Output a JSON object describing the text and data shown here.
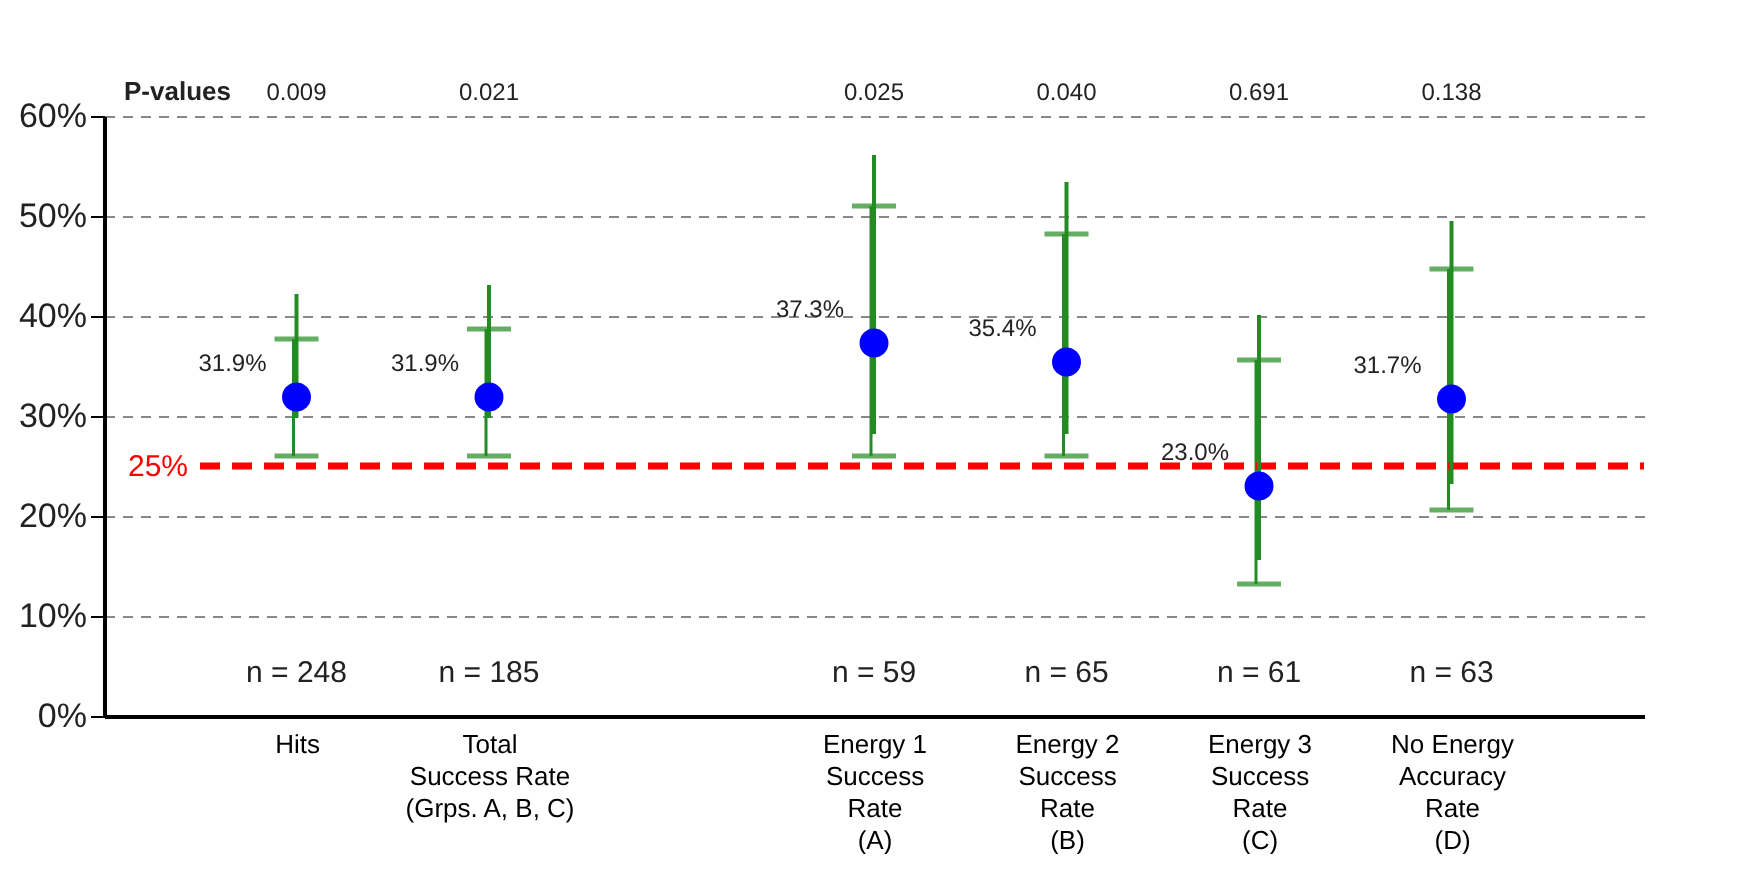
{
  "chart_data": {
    "type": "scatter",
    "categories": [
      "Hits",
      "Total\nSuccess Rate\n(Grps. A, B, C)",
      null,
      "Energy 1\nSuccess\nRate\n(A)",
      "Energy 2\nSuccess\nRate\n(B)",
      "Energy 3\nSuccess\nRate\n(C)",
      "No Energy\nAccuracy\nRate\n(D)"
    ],
    "series": [
      {
        "type": "bar",
        "color": "#228b22",
        "base": [
          29.8,
          29.8,
          null,
          28.2,
          28.2,
          15.6,
          23.2
        ],
        "values": [
          12.4,
          13.3,
          null,
          27.9,
          25.2,
          24.5,
          26.3
        ]
      },
      {
        "color": "#0000ff",
        "marker": "circle",
        "values": [
          31.9,
          31.9,
          null,
          37.3,
          35.4,
          23.0,
          31.7
        ],
        "errors": [
          [
            26.0,
            37.7
          ],
          [
            26.0,
            38.7
          ],
          null,
          [
            26.0,
            51.0
          ],
          [
            26.0,
            48.2
          ],
          [
            13.2,
            35.6
          ],
          [
            20.6,
            44.7
          ]
        ],
        "value_labels": [
          "31.9%",
          "31.9%",
          null,
          "37.3%",
          "35.4%",
          "23.0%",
          "31.7%"
        ]
      }
    ],
    "ylim": [
      0,
      60
    ],
    "yticks": [
      {
        "value": 0,
        "label": "0%"
      },
      {
        "value": 10,
        "label": "10%"
      },
      {
        "value": 20,
        "label": "20%"
      },
      {
        "value": 30,
        "label": "30%"
      },
      {
        "value": 40,
        "label": "40%"
      },
      {
        "value": 50,
        "label": "50%"
      },
      {
        "value": 60,
        "label": "60%"
      }
    ],
    "grid": "y",
    "ref_lines": [
      {
        "axis": "y",
        "value": 25,
        "label": "25%",
        "color": "#ff0000",
        "line_style": "dashed"
      }
    ],
    "annotations": [
      "P-values",
      "0.009",
      "0.021",
      "0.025",
      "0.040",
      "0.691",
      "0.138",
      "n = 248",
      "n = 185",
      "n = 59",
      "n = 65",
      "n = 61",
      "n = 63"
    ]
  }
}
